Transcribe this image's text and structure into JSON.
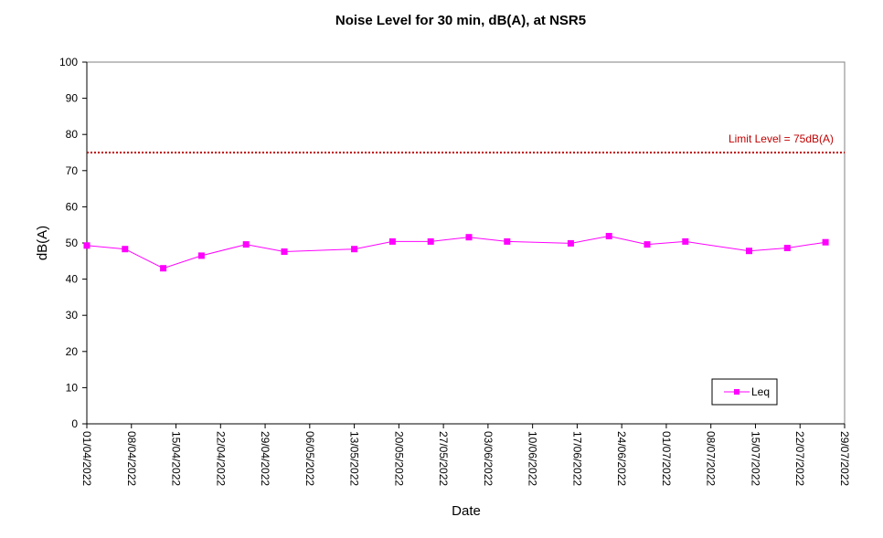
{
  "chart_data": {
    "type": "line",
    "title": "Noise Level for 30 min, dB(A), at NSR5",
    "xlabel": "Date",
    "ylabel": "dB(A)",
    "ylim": [
      0,
      100
    ],
    "yticks": [
      0,
      10,
      20,
      30,
      40,
      50,
      60,
      70,
      80,
      90,
      100
    ],
    "xlim": [
      "01/04/2022",
      "29/07/2022"
    ],
    "xticks": [
      "01/04/2022",
      "08/04/2022",
      "15/04/2022",
      "22/04/2022",
      "29/04/2022",
      "06/05/2022",
      "13/05/2022",
      "20/05/2022",
      "27/05/2022",
      "03/06/2022",
      "10/06/2022",
      "17/06/2022",
      "24/06/2022",
      "01/07/2022",
      "08/07/2022",
      "15/07/2022",
      "22/07/2022",
      "29/07/2022"
    ],
    "grid": false,
    "legend_position": "bottom-right",
    "series": [
      {
        "name": "Leq",
        "color": "#ff00ff",
        "marker": "square",
        "x": [
          "01/04/2022",
          "07/04/2022",
          "13/04/2022",
          "19/04/2022",
          "26/04/2022",
          "02/05/2022",
          "13/05/2022",
          "19/05/2022",
          "25/05/2022",
          "31/05/2022",
          "06/06/2022",
          "16/06/2022",
          "22/06/2022",
          "28/06/2022",
          "04/07/2022",
          "14/07/2022",
          "20/07/2022",
          "26/07/2022"
        ],
        "values": [
          49.3,
          48.3,
          43.0,
          46.5,
          49.6,
          47.6,
          48.3,
          50.4,
          50.4,
          51.6,
          50.4,
          49.9,
          51.9,
          49.6,
          50.4,
          47.8,
          48.6,
          50.2
        ]
      }
    ],
    "reference_lines": [
      {
        "label": "Limit Level  = 75dB(A)",
        "value": 75,
        "color": "#c00000",
        "style": "dotted"
      }
    ]
  }
}
